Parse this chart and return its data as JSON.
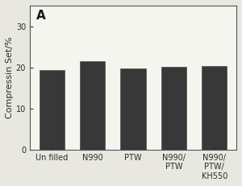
{
  "categories": [
    "Un filled",
    "N990",
    "PTW",
    "N990/\nPTW",
    "N990/\nPTW/\nKH550"
  ],
  "values": [
    19.3,
    21.5,
    19.7,
    20.1,
    20.4
  ],
  "bar_color": "#383838",
  "title": "A",
  "ylabel": "Compressin Set/%",
  "ylim": [
    0,
    35
  ],
  "yticks": [
    0,
    10,
    20,
    30
  ],
  "ylabel_fontsize": 8,
  "tick_fontsize": 7,
  "title_fontsize": 11,
  "background_color": "#f5f5f0",
  "figure_background": "#e8e8e0",
  "edge_color": "#383838",
  "bar_width": 0.62
}
